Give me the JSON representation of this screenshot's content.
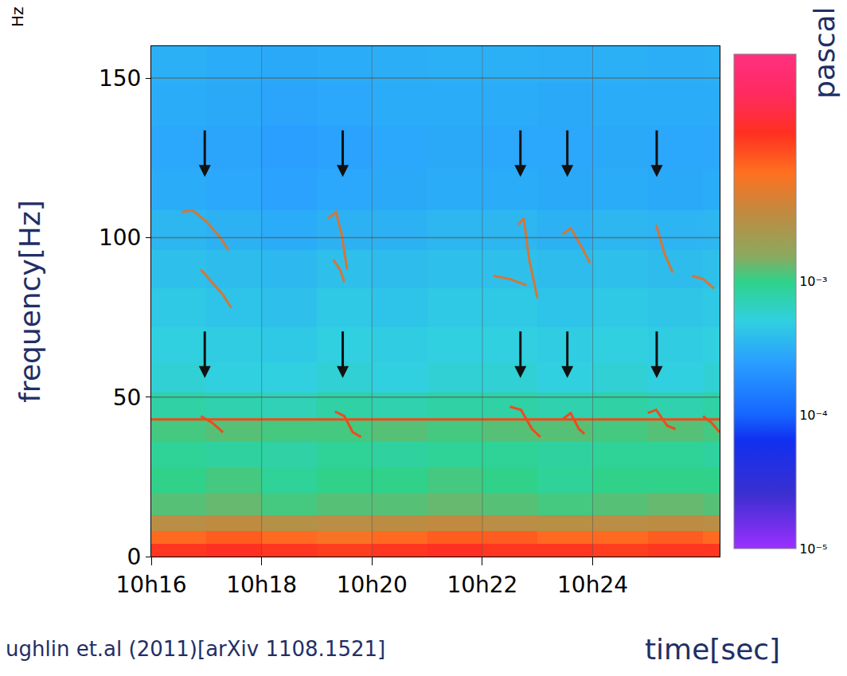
{
  "chart_data": {
    "type": "heatmap",
    "ylabel": "frequency[Hz]",
    "xlabel": "time[sec]",
    "annotations": [
      "Hz",
      "ughlin et.al (2011)[arXiv 1108.1521]"
    ],
    "xlim": [
      16,
      26.3
    ],
    "xticks": [
      {
        "value": 16,
        "label": "10h16"
      },
      {
        "value": 18,
        "label": "10h18"
      },
      {
        "value": 20,
        "label": "10h20"
      },
      {
        "value": 22,
        "label": "10h22"
      },
      {
        "value": 24,
        "label": "10h24"
      }
    ],
    "ylim": [
      0,
      160
    ],
    "yticks": [
      0,
      50,
      100,
      150
    ],
    "grid": true,
    "cell_x": [
      16.5,
      17.5,
      18.5,
      19.5,
      20.5,
      21.5,
      22.5,
      23.5,
      24.5,
      25.5,
      26.5
    ],
    "cell_y": [
      2,
      6,
      10,
      16,
      24,
      32,
      40,
      47,
      56,
      66,
      78,
      90,
      102,
      115,
      128,
      142,
      155
    ],
    "cells": [
      [
        0.012,
        0.013,
        0.012,
        0.011,
        0.012,
        0.013,
        0.012,
        0.012,
        0.011,
        0.012,
        0.012
      ],
      [
        0.007,
        0.008,
        0.007,
        0.006,
        0.007,
        0.008,
        0.008,
        0.007,
        0.007,
        0.008,
        0.007
      ],
      [
        0.003,
        0.0032,
        0.0028,
        0.003,
        0.0031,
        0.0033,
        0.003,
        0.0029,
        0.003,
        0.0031,
        0.003
      ],
      [
        0.0012,
        0.0013,
        0.0011,
        0.0012,
        0.0012,
        0.0013,
        0.0012,
        0.0011,
        0.0012,
        0.0013,
        0.0012
      ],
      [
        0.001,
        0.0011,
        0.0009,
        0.001,
        0.001,
        0.0011,
        0.001,
        0.0009,
        0.001,
        0.001,
        0.001
      ],
      [
        0.0009,
        0.00085,
        0.0008,
        0.0009,
        0.00085,
        0.0009,
        0.0009,
        0.00085,
        0.0009,
        0.0009,
        0.00085
      ],
      [
        0.0011,
        0.0012,
        0.0011,
        0.0011,
        0.0012,
        0.0011,
        0.0012,
        0.0012,
        0.0011,
        0.0012,
        0.0011
      ],
      [
        0.0008,
        0.00075,
        0.0007,
        0.0008,
        0.00075,
        0.0008,
        0.0008,
        0.00075,
        0.0008,
        0.00075,
        0.0008
      ],
      [
        0.00055,
        0.0005,
        0.0005,
        0.00055,
        0.0005,
        0.00055,
        0.00055,
        0.0005,
        0.00055,
        0.0005,
        0.00055
      ],
      [
        0.0005,
        0.00048,
        0.00045,
        0.0005,
        0.00048,
        0.0005,
        0.0005,
        0.00048,
        0.0005,
        0.00048,
        0.0005
      ],
      [
        0.00045,
        0.00042,
        0.0004,
        0.00045,
        0.00042,
        0.00045,
        0.00045,
        0.00042,
        0.00045,
        0.00043,
        0.00045
      ],
      [
        0.0004,
        0.00038,
        0.00036,
        0.0004,
        0.00038,
        0.0004,
        0.0004,
        0.00038,
        0.0004,
        0.00038,
        0.0004
      ],
      [
        0.00035,
        0.00033,
        0.0003,
        0.00033,
        0.00033,
        0.00035,
        0.00035,
        0.00033,
        0.00035,
        0.00034,
        0.00035
      ],
      [
        0.0003,
        0.00028,
        0.00026,
        0.00028,
        0.00029,
        0.0003,
        0.0003,
        0.00029,
        0.0003,
        0.00029,
        0.0003
      ],
      [
        0.00028,
        0.00027,
        0.00025,
        0.00026,
        0.00028,
        0.00029,
        0.00028,
        0.00028,
        0.00029,
        0.00028,
        0.00028
      ],
      [
        0.0003,
        0.00029,
        0.00027,
        0.00028,
        0.0003,
        0.0003,
        0.0003,
        0.00029,
        0.0003,
        0.0003,
        0.0003
      ],
      [
        0.00032,
        0.0003,
        0.00029,
        0.0003,
        0.00031,
        0.00032,
        0.00032,
        0.00031,
        0.00032,
        0.00031,
        0.00032
      ]
    ],
    "colorbar": {
      "title": "pascal",
      "log": true,
      "range": [
        1e-05,
        0.05
      ],
      "ticks": [
        {
          "value": 0.001,
          "label": "10⁻³"
        },
        {
          "value": 0.0001,
          "label": "10⁻⁴"
        },
        {
          "value": 1e-05,
          "label": "10⁻⁵"
        }
      ]
    },
    "series": [
      {
        "type": "line",
        "color": "#f04a1c",
        "x": [
          16,
          26.3
        ],
        "values": [
          43,
          43
        ]
      },
      {
        "type": "line",
        "color": "#f04a1c",
        "x": [
          16.9,
          17.1,
          17.3
        ],
        "values": [
          44,
          42,
          39
        ]
      },
      {
        "type": "line",
        "color": "#f04a1c",
        "x": [
          19.33,
          19.5,
          19.65,
          19.8
        ],
        "values": [
          45.5,
          44,
          39,
          37.5
        ]
      },
      {
        "type": "line",
        "color": "#f04a1c",
        "x": [
          22.5,
          22.7,
          22.9,
          23.05
        ],
        "values": [
          47,
          46,
          40,
          37.5
        ]
      },
      {
        "type": "line",
        "color": "#f04a1c",
        "x": [
          23.45,
          23.6,
          23.75,
          23.85
        ],
        "values": [
          43,
          45,
          40,
          38.5
        ]
      },
      {
        "type": "line",
        "color": "#f04a1c",
        "x": [
          25.0,
          25.15,
          25.35,
          25.5
        ],
        "values": [
          45,
          46,
          41,
          40
        ]
      },
      {
        "type": "line",
        "color": "#f04a1c",
        "x": [
          26.0,
          26.15,
          26.3
        ],
        "values": [
          44,
          42,
          39
        ]
      },
      {
        "type": "line",
        "color": "#d2773a",
        "x": [
          16.55,
          16.75,
          17.0,
          17.25,
          17.4
        ],
        "values": [
          108,
          108.5,
          105,
          100,
          96
        ]
      },
      {
        "type": "line",
        "color": "#d2773a",
        "x": [
          16.9,
          17.1,
          17.3,
          17.45
        ],
        "values": [
          90,
          86,
          82,
          78
        ]
      },
      {
        "type": "line",
        "color": "#d2773a",
        "x": [
          19.2,
          19.35,
          19.45,
          19.55
        ],
        "values": [
          106,
          108,
          101,
          90
        ]
      },
      {
        "type": "line",
        "color": "#d2773a",
        "x": [
          19.3,
          19.42,
          19.5
        ],
        "values": [
          93,
          90,
          86
        ]
      },
      {
        "type": "line",
        "color": "#d2773a",
        "x": [
          22.65,
          22.75,
          22.85,
          23.0
        ],
        "values": [
          104,
          106,
          93,
          81
        ]
      },
      {
        "type": "line",
        "color": "#d2773a",
        "x": [
          22.2,
          22.5,
          22.8
        ],
        "values": [
          88,
          87,
          85
        ]
      },
      {
        "type": "line",
        "color": "#d2773a",
        "x": [
          23.45,
          23.6,
          23.8,
          23.95
        ],
        "values": [
          101,
          103,
          97,
          92
        ]
      },
      {
        "type": "line",
        "color": "#d2773a",
        "x": [
          25.15,
          25.3,
          25.45
        ],
        "values": [
          104,
          95,
          89
        ]
      },
      {
        "type": "line",
        "color": "#d2773a",
        "x": [
          25.8,
          26.0,
          26.2
        ],
        "values": [
          88,
          87,
          84
        ]
      }
    ],
    "arrows": {
      "x": [
        16.97,
        19.47,
        22.69,
        23.54,
        25.16
      ],
      "y": [
        119,
        56
      ]
    }
  }
}
